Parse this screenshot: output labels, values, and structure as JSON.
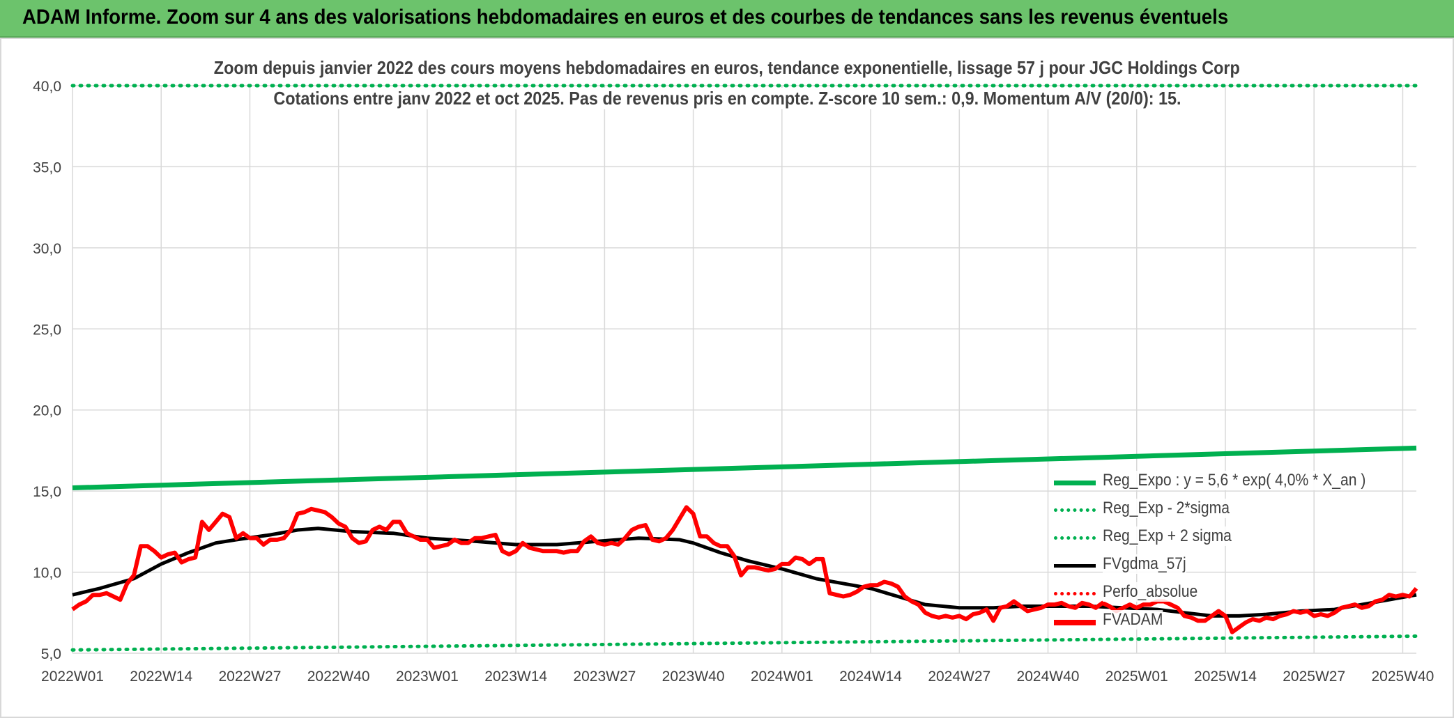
{
  "header": {
    "title": "ADAM Informe. Zoom sur 4 ans des valorisations hebdomadaires en euros et des courbes de tendances sans les revenus éventuels"
  },
  "chart_data": {
    "type": "line",
    "title": "Zoom depuis janvier 2022 des cours moyens hebdomadaires en euros, tendance exponentielle, lissage 57 j pour JGC Holdings Corp",
    "subtitle": "Cotations entre janv 2022 et oct 2025. Pas de revenus pris en compte. Z-score 10 sem.: 0,9. Momentum A/V (20/0): 15.",
    "xlabel": "",
    "ylabel": "",
    "ylim": [
      5,
      40
    ],
    "yticks": [
      "5,0",
      "10,0",
      "15,0",
      "20,0",
      "25,0",
      "30,0",
      "35,0",
      "40,0"
    ],
    "x_range": [
      1,
      198
    ],
    "xticks": [
      {
        "x": 1,
        "label": "2022W01"
      },
      {
        "x": 14,
        "label": "2022W14"
      },
      {
        "x": 27,
        "label": "2022W27"
      },
      {
        "x": 40,
        "label": "2022W40"
      },
      {
        "x": 53,
        "label": "2023W01"
      },
      {
        "x": 66,
        "label": "2023W14"
      },
      {
        "x": 79,
        "label": "2023W27"
      },
      {
        "x": 92,
        "label": "2023W40"
      },
      {
        "x": 105,
        "label": "2024W01"
      },
      {
        "x": 118,
        "label": "2024W14"
      },
      {
        "x": 131,
        "label": "2024W27"
      },
      {
        "x": 144,
        "label": "2024W40"
      },
      {
        "x": 157,
        "label": "2025W01"
      },
      {
        "x": 170,
        "label": "2025W14"
      },
      {
        "x": 183,
        "label": "2025W27"
      },
      {
        "x": 196,
        "label": "2025W40"
      }
    ],
    "grid": true,
    "legend_position": "bottom-right",
    "series": [
      {
        "name": "Reg_Expo : y = 5,6 * exp( 4,0% *  X_an )",
        "color": "#00b050",
        "style": "solid-thick",
        "points": [
          [
            1,
            15.2
          ],
          [
            198,
            17.65
          ]
        ]
      },
      {
        "name": "Reg_Exp - 2*sigma",
        "color": "#00b050",
        "style": "dotted",
        "points": [
          [
            1,
            5.2
          ],
          [
            198,
            6.05
          ]
        ]
      },
      {
        "name": "Reg_Exp + 2 sigma",
        "color": "#00b050",
        "style": "dotted",
        "points": [
          [
            1,
            40.0
          ],
          [
            198,
            40.0
          ]
        ]
      },
      {
        "name": "FVgdma_57j",
        "color": "#000000",
        "style": "solid",
        "points": [
          [
            1,
            8.6
          ],
          [
            5,
            9.0
          ],
          [
            10,
            9.6
          ],
          [
            14,
            10.5
          ],
          [
            18,
            11.2
          ],
          [
            22,
            11.8
          ],
          [
            25,
            12.0
          ],
          [
            30,
            12.3
          ],
          [
            34,
            12.6
          ],
          [
            37,
            12.7
          ],
          [
            42,
            12.5
          ],
          [
            48,
            12.4
          ],
          [
            53,
            12.1
          ],
          [
            60,
            11.9
          ],
          [
            66,
            11.7
          ],
          [
            72,
            11.7
          ],
          [
            78,
            11.9
          ],
          [
            84,
            12.1
          ],
          [
            90,
            12.0
          ],
          [
            92,
            11.8
          ],
          [
            96,
            11.2
          ],
          [
            100,
            10.7
          ],
          [
            105,
            10.2
          ],
          [
            110,
            9.6
          ],
          [
            114,
            9.3
          ],
          [
            118,
            9.0
          ],
          [
            122,
            8.5
          ],
          [
            126,
            8.0
          ],
          [
            131,
            7.8
          ],
          [
            136,
            7.8
          ],
          [
            140,
            7.9
          ],
          [
            144,
            7.9
          ],
          [
            150,
            7.9
          ],
          [
            155,
            7.8
          ],
          [
            160,
            7.7
          ],
          [
            164,
            7.5
          ],
          [
            168,
            7.3
          ],
          [
            172,
            7.3
          ],
          [
            176,
            7.4
          ],
          [
            181,
            7.6
          ],
          [
            186,
            7.7
          ],
          [
            190,
            8.0
          ],
          [
            194,
            8.3
          ],
          [
            198,
            8.6
          ]
        ]
      },
      {
        "name": "Perfo_absolue",
        "color": "#ff0000",
        "style": "dotted",
        "points": []
      },
      {
        "name": "FVADAM",
        "color": "#ff0000",
        "style": "solid-thick",
        "points": [
          [
            1,
            7.7
          ],
          [
            2,
            8.0
          ],
          [
            3,
            8.2
          ],
          [
            4,
            8.6
          ],
          [
            5,
            8.6
          ],
          [
            6,
            8.7
          ],
          [
            7,
            8.5
          ],
          [
            8,
            8.3
          ],
          [
            9,
            9.3
          ],
          [
            10,
            9.8
          ],
          [
            11,
            11.6
          ],
          [
            12,
            11.6
          ],
          [
            13,
            11.3
          ],
          [
            14,
            10.9
          ],
          [
            15,
            11.1
          ],
          [
            16,
            11.2
          ],
          [
            17,
            10.6
          ],
          [
            18,
            10.8
          ],
          [
            19,
            10.9
          ],
          [
            20,
            13.1
          ],
          [
            21,
            12.6
          ],
          [
            22,
            13.1
          ],
          [
            23,
            13.6
          ],
          [
            24,
            13.4
          ],
          [
            25,
            12.1
          ],
          [
            26,
            12.4
          ],
          [
            27,
            12.1
          ],
          [
            28,
            12.1
          ],
          [
            29,
            11.7
          ],
          [
            30,
            12.0
          ],
          [
            31,
            12.0
          ],
          [
            32,
            12.1
          ],
          [
            33,
            12.6
          ],
          [
            34,
            13.6
          ],
          [
            35,
            13.7
          ],
          [
            36,
            13.9
          ],
          [
            37,
            13.8
          ],
          [
            38,
            13.7
          ],
          [
            39,
            13.4
          ],
          [
            40,
            13.0
          ],
          [
            41,
            12.8
          ],
          [
            42,
            12.1
          ],
          [
            43,
            11.8
          ],
          [
            44,
            11.9
          ],
          [
            45,
            12.6
          ],
          [
            46,
            12.8
          ],
          [
            47,
            12.6
          ],
          [
            48,
            13.1
          ],
          [
            49,
            13.1
          ],
          [
            50,
            12.4
          ],
          [
            51,
            12.2
          ],
          [
            52,
            12.0
          ],
          [
            53,
            12.0
          ],
          [
            54,
            11.5
          ],
          [
            55,
            11.6
          ],
          [
            56,
            11.7
          ],
          [
            57,
            12.0
          ],
          [
            58,
            11.8
          ],
          [
            59,
            11.8
          ],
          [
            60,
            12.1
          ],
          [
            61,
            12.1
          ],
          [
            62,
            12.2
          ],
          [
            63,
            12.3
          ],
          [
            64,
            11.3
          ],
          [
            65,
            11.1
          ],
          [
            66,
            11.3
          ],
          [
            67,
            11.8
          ],
          [
            68,
            11.5
          ],
          [
            69,
            11.4
          ],
          [
            70,
            11.3
          ],
          [
            71,
            11.3
          ],
          [
            72,
            11.3
          ],
          [
            73,
            11.2
          ],
          [
            74,
            11.3
          ],
          [
            75,
            11.3
          ],
          [
            76,
            11.9
          ],
          [
            77,
            12.2
          ],
          [
            78,
            11.8
          ],
          [
            79,
            11.7
          ],
          [
            80,
            11.8
          ],
          [
            81,
            11.7
          ],
          [
            82,
            12.1
          ],
          [
            83,
            12.6
          ],
          [
            84,
            12.8
          ],
          [
            85,
            12.9
          ],
          [
            86,
            12.0
          ],
          [
            87,
            11.9
          ],
          [
            88,
            12.1
          ],
          [
            89,
            12.6
          ],
          [
            90,
            13.3
          ],
          [
            91,
            14.0
          ],
          [
            92,
            13.6
          ],
          [
            93,
            12.2
          ],
          [
            94,
            12.2
          ],
          [
            95,
            11.8
          ],
          [
            96,
            11.6
          ],
          [
            97,
            11.6
          ],
          [
            98,
            11.0
          ],
          [
            99,
            9.8
          ],
          [
            100,
            10.3
          ],
          [
            101,
            10.3
          ],
          [
            102,
            10.2
          ],
          [
            103,
            10.1
          ],
          [
            104,
            10.2
          ],
          [
            105,
            10.5
          ],
          [
            106,
            10.5
          ],
          [
            107,
            10.9
          ],
          [
            108,
            10.8
          ],
          [
            109,
            10.5
          ],
          [
            110,
            10.8
          ],
          [
            111,
            10.8
          ],
          [
            112,
            8.7
          ],
          [
            113,
            8.6
          ],
          [
            114,
            8.5
          ],
          [
            115,
            8.6
          ],
          [
            116,
            8.8
          ],
          [
            117,
            9.1
          ],
          [
            118,
            9.2
          ],
          [
            119,
            9.2
          ],
          [
            120,
            9.4
          ],
          [
            121,
            9.3
          ],
          [
            122,
            9.1
          ],
          [
            123,
            8.5
          ],
          [
            124,
            8.2
          ],
          [
            125,
            8.0
          ],
          [
            126,
            7.5
          ],
          [
            127,
            7.3
          ],
          [
            128,
            7.2
          ],
          [
            129,
            7.3
          ],
          [
            130,
            7.2
          ],
          [
            131,
            7.3
          ],
          [
            132,
            7.1
          ],
          [
            133,
            7.4
          ],
          [
            134,
            7.5
          ],
          [
            135,
            7.7
          ],
          [
            136,
            7.0
          ],
          [
            137,
            7.8
          ],
          [
            138,
            7.9
          ],
          [
            139,
            8.2
          ],
          [
            140,
            7.9
          ],
          [
            141,
            7.6
          ],
          [
            142,
            7.7
          ],
          [
            143,
            7.8
          ],
          [
            144,
            8.0
          ],
          [
            145,
            8.0
          ],
          [
            146,
            8.1
          ],
          [
            147,
            7.9
          ],
          [
            148,
            7.8
          ],
          [
            149,
            8.1
          ],
          [
            150,
            8.0
          ],
          [
            151,
            7.8
          ],
          [
            152,
            8.1
          ],
          [
            153,
            7.9
          ],
          [
            154,
            7.6
          ],
          [
            155,
            7.8
          ],
          [
            156,
            8.0
          ],
          [
            157,
            7.8
          ],
          [
            158,
            8.0
          ],
          [
            159,
            8.0
          ],
          [
            160,
            8.2
          ],
          [
            161,
            8.2
          ],
          [
            162,
            8.0
          ],
          [
            163,
            7.8
          ],
          [
            164,
            7.3
          ],
          [
            165,
            7.2
          ],
          [
            166,
            7.0
          ],
          [
            167,
            7.0
          ],
          [
            168,
            7.3
          ],
          [
            169,
            7.6
          ],
          [
            170,
            7.3
          ],
          [
            171,
            6.3
          ],
          [
            172,
            6.6
          ],
          [
            173,
            6.9
          ],
          [
            174,
            7.1
          ],
          [
            175,
            7.0
          ],
          [
            176,
            7.2
          ],
          [
            177,
            7.1
          ],
          [
            178,
            7.3
          ],
          [
            179,
            7.4
          ],
          [
            180,
            7.6
          ],
          [
            181,
            7.5
          ],
          [
            182,
            7.6
          ],
          [
            183,
            7.3
          ],
          [
            184,
            7.4
          ],
          [
            185,
            7.3
          ],
          [
            186,
            7.5
          ],
          [
            187,
            7.8
          ],
          [
            188,
            7.9
          ],
          [
            189,
            8.0
          ],
          [
            190,
            7.8
          ],
          [
            191,
            7.9
          ],
          [
            192,
            8.2
          ],
          [
            193,
            8.3
          ],
          [
            194,
            8.6
          ],
          [
            195,
            8.5
          ],
          [
            196,
            8.6
          ],
          [
            197,
            8.5
          ],
          [
            198,
            9.0
          ]
        ]
      }
    ]
  }
}
